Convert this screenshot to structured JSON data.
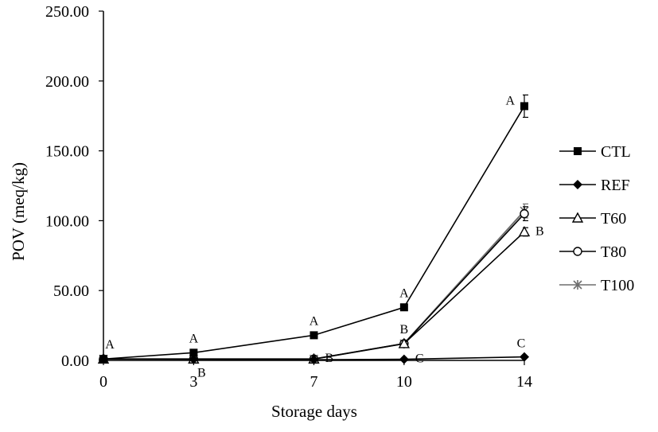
{
  "chart_data": {
    "type": "line",
    "title": "",
    "xlabel": "Storage days",
    "ylabel": "POV (meq/kg)",
    "categories": [
      "0",
      "3",
      "7",
      "10",
      "14"
    ],
    "x": [
      0,
      3,
      7,
      10,
      14
    ],
    "xlim": [
      0,
      14
    ],
    "ylim": [
      0,
      250
    ],
    "yticks": [
      "0.00",
      "50.00",
      "100.00",
      "150.00",
      "200.00",
      "250.00"
    ],
    "grid": false,
    "legend_position": "right",
    "series": [
      {
        "name": "CTL",
        "values": [
          1.0,
          5.5,
          18.0,
          38.0,
          182.0
        ],
        "marker": "square",
        "color": "#000000",
        "error": [
          0,
          0,
          0,
          0,
          8
        ]
      },
      {
        "name": "REF",
        "values": [
          1.0,
          0.8,
          0.5,
          0.8,
          2.5
        ],
        "marker": "diamond",
        "color": "#000000",
        "error": [
          0,
          0,
          0,
          0,
          0
        ]
      },
      {
        "name": "T60",
        "values": [
          1.0,
          1.0,
          1.0,
          12.0,
          92.0
        ],
        "marker": "triangle",
        "color": "#000000",
        "error": [
          0,
          0,
          0,
          0,
          3
        ]
      },
      {
        "name": "T80",
        "values": [
          1.0,
          1.0,
          1.0,
          12.0,
          105.0
        ],
        "marker": "circle",
        "color": "#000000",
        "error": [
          0,
          0,
          0,
          0,
          5
        ]
      },
      {
        "name": "T100",
        "values": [
          1.0,
          1.0,
          1.0,
          12.0,
          107.0
        ],
        "marker": "star",
        "color": "#6e6e6e",
        "error": [
          0,
          0,
          0,
          0,
          5
        ]
      }
    ],
    "annotations": [
      {
        "text": "A",
        "x": 0,
        "y": 1.0,
        "placement": "above"
      },
      {
        "text": "A",
        "x": 3,
        "y": 5.5,
        "placement": "above"
      },
      {
        "text": "B",
        "x": 3,
        "y": 0.8,
        "placement": "below"
      },
      {
        "text": "A",
        "x": 7,
        "y": 18.0,
        "placement": "above"
      },
      {
        "text": "B",
        "x": 7,
        "y": 1.0,
        "placement": "right"
      },
      {
        "text": "A",
        "x": 10,
        "y": 38.0,
        "placement": "above"
      },
      {
        "text": "B",
        "x": 10,
        "y": 12.0,
        "placement": "above"
      },
      {
        "text": "C",
        "x": 10,
        "y": 0.8,
        "placement": "right"
      },
      {
        "text": "A",
        "x": 14,
        "y": 182.0,
        "placement": "left"
      },
      {
        "text": "B",
        "x": 14,
        "y": 92.0,
        "placement": "right"
      },
      {
        "text": "C",
        "x": 14,
        "y": 2.5,
        "placement": "above-left"
      }
    ]
  }
}
